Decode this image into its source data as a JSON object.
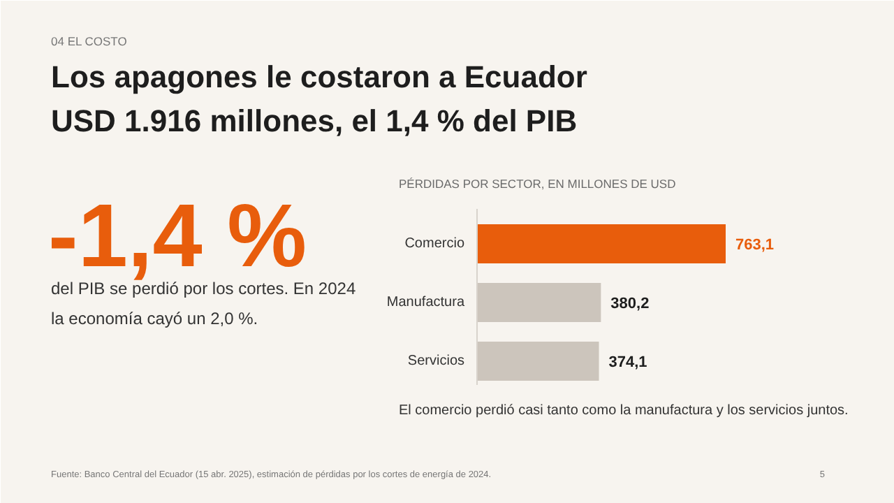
{
  "chart_data": {
    "type": "bar",
    "orientation": "horizontal",
    "title": "Los apagones le costaron a Ecuador\nUSD 1.916 millones, el 1,4 % del PIB",
    "subtitle": "PÉRDIDAS POR SECTOR, EN MILLONES DE USD",
    "categories": [
      "Comercio",
      "Manufactura",
      "Servicios"
    ],
    "values": [
      763.1,
      380.2,
      374.1
    ],
    "colors": [
      "#e85d0c",
      "#ccc5bc",
      "#ccc5bc"
    ],
    "value_labels": [
      "763,1",
      "380,2",
      "374,1"
    ],
    "annotations": [
      "04    EL COSTO",
      "-1,4 %",
      "del PIB se perdió por los cortes. En 2024\nla economía cayó un 2,0 %.",
      "El comercio perdió casi tanto como la manufactura y los servicios juntos.",
      "Fuente: Banco Central del Ecuador (15 abr. 2025), estimación de pérdidas por los cortes de energía de 2024.",
      "5"
    ]
  }
}
